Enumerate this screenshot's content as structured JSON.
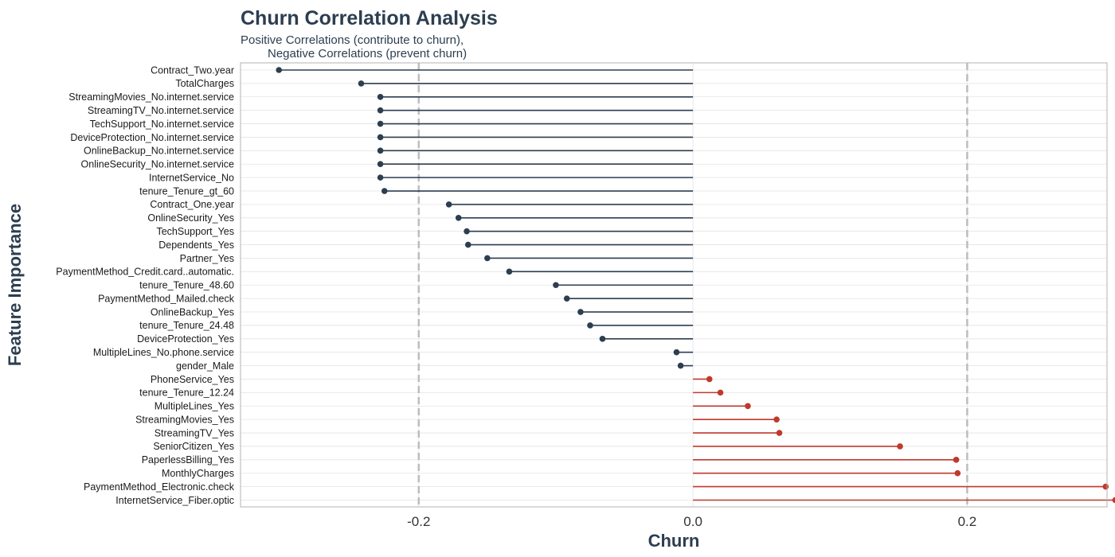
{
  "chart_data": {
    "type": "lollipop",
    "title": "Churn Correlation Analysis",
    "subtitle_lines": [
      "Positive Correlations (contribute to churn),",
      "Negative Correlations (prevent churn)"
    ],
    "xlabel": "Churn",
    "ylabel": "Feature Importance",
    "xlim": [
      -0.33,
      0.302
    ],
    "x_ticks": [
      -0.2,
      0.0,
      0.2
    ],
    "x_tick_labels": [
      "-0.2",
      "0.0",
      "0.2"
    ],
    "reference_lines": [
      -0.2,
      0.2
    ],
    "grid": true,
    "colors": {
      "negative": "#2c3e50",
      "positive": "#c0392b",
      "reference": "#bdbdbd",
      "grid": "#e3e3e3",
      "border": "#b3b3b3",
      "text": "#2c3e50"
    },
    "categories": [
      "Contract_Two.year",
      "TotalCharges",
      "StreamingMovies_No.internet.service",
      "StreamingTV_No.internet.service",
      "TechSupport_No.internet.service",
      "DeviceProtection_No.internet.service",
      "OnlineBackup_No.internet.service",
      "OnlineSecurity_No.internet.service",
      "InternetService_No",
      "tenure_Tenure_gt_60",
      "Contract_One.year",
      "OnlineSecurity_Yes",
      "TechSupport_Yes",
      "Dependents_Yes",
      "Partner_Yes",
      "PaymentMethod_Credit.card..automatic.",
      "tenure_Tenure_48.60",
      "PaymentMethod_Mailed.check",
      "OnlineBackup_Yes",
      "tenure_Tenure_24.48",
      "DeviceProtection_Yes",
      "MultipleLines_No.phone.service",
      "gender_Male",
      "PhoneService_Yes",
      "tenure_Tenure_12.24",
      "MultipleLines_Yes",
      "StreamingMovies_Yes",
      "StreamingTV_Yes",
      "SeniorCitizen_Yes",
      "PaperlessBilling_Yes",
      "MonthlyCharges",
      "PaymentMethod_Electronic.check",
      "InternetService_Fiber.optic"
    ],
    "values": [
      -0.302,
      -0.242,
      -0.228,
      -0.228,
      -0.228,
      -0.228,
      -0.228,
      -0.228,
      -0.228,
      -0.225,
      -0.178,
      -0.171,
      -0.165,
      -0.164,
      -0.15,
      -0.134,
      -0.1,
      -0.092,
      -0.082,
      -0.075,
      -0.066,
      -0.012,
      -0.009,
      0.012,
      0.02,
      0.04,
      0.061,
      0.063,
      0.151,
      0.192,
      0.193,
      0.301,
      0.308
    ]
  }
}
